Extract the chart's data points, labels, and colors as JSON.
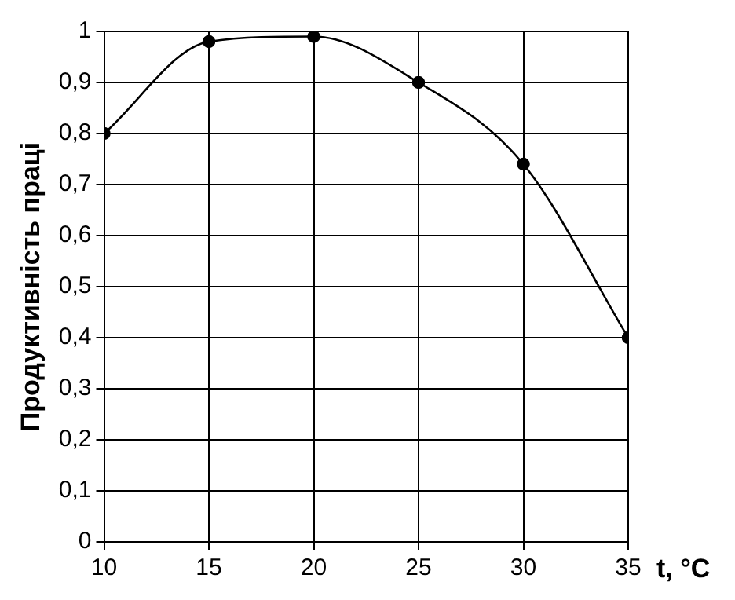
{
  "chart_data": {
    "type": "line",
    "xlabel": "t, °C",
    "ylabel": "Продуктивність праці",
    "x": [
      10,
      15,
      20,
      25,
      30,
      35
    ],
    "series": [
      {
        "color": "#000000",
        "values": [
          0.8,
          0.98,
          0.99,
          0.9,
          0.74,
          0.4
        ]
      }
    ],
    "xlim": [
      10,
      35
    ],
    "xticks": [
      10,
      15,
      20,
      25,
      30,
      35
    ],
    "ylim": [
      0,
      1
    ],
    "yticks": [
      0,
      {
        "value": 0.1,
        "label": "0,1"
      },
      {
        "value": 0.2,
        "label": "0,2"
      },
      {
        "value": 0.3,
        "label": "0,3"
      },
      {
        "value": 0.4,
        "label": "0,4"
      },
      {
        "value": 0.5,
        "label": "0,5"
      },
      {
        "value": 0.6,
        "label": "0,6"
      },
      {
        "value": 0.7,
        "label": "0,7"
      },
      {
        "value": 0.8,
        "label": "0,8"
      },
      {
        "value": 0.9,
        "label": "0,9"
      },
      1
    ],
    "grid": true,
    "legend": false,
    "marker": "circle",
    "line_style": "solid"
  }
}
